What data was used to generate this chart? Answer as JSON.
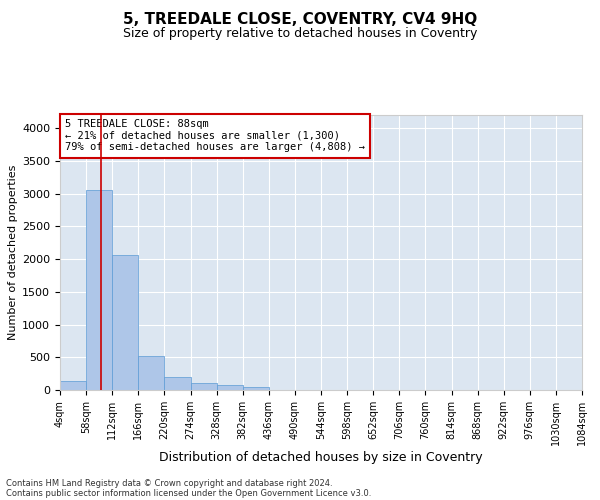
{
  "title": "5, TREEDALE CLOSE, COVENTRY, CV4 9HQ",
  "subtitle": "Size of property relative to detached houses in Coventry",
  "xlabel": "Distribution of detached houses by size in Coventry",
  "ylabel": "Number of detached properties",
  "footer_line1": "Contains HM Land Registry data © Crown copyright and database right 2024.",
  "footer_line2": "Contains public sector information licensed under the Open Government Licence v3.0.",
  "bin_edges": [
    4,
    58,
    112,
    166,
    220,
    274,
    328,
    382,
    436,
    490,
    544,
    598,
    652,
    706,
    760,
    814,
    868,
    922,
    976,
    1030,
    1084
  ],
  "bar_heights": [
    130,
    3050,
    2060,
    520,
    205,
    100,
    75,
    50,
    5,
    0,
    0,
    0,
    0,
    0,
    0,
    0,
    0,
    0,
    0,
    0
  ],
  "bar_color": "#aec6e8",
  "bar_edge_color": "#5b9bd5",
  "property_size": 88,
  "annotation_line1": "5 TREEDALE CLOSE: 88sqm",
  "annotation_line2": "← 21% of detached houses are smaller (1,300)",
  "annotation_line3": "79% of semi-detached houses are larger (4,808) →",
  "vline_color": "#cc0000",
  "annotation_box_edge_color": "#cc0000",
  "ylim_max": 4200,
  "yticks": [
    0,
    500,
    1000,
    1500,
    2000,
    2500,
    3000,
    3500,
    4000
  ],
  "plot_bg_color": "#dce6f1",
  "fig_bg_color": "#ffffff",
  "grid_color": "#ffffff",
  "title_fontsize": 11,
  "subtitle_fontsize": 9,
  "ylabel_fontsize": 8,
  "xlabel_fontsize": 9,
  "annotation_fontsize": 7.5,
  "footer_fontsize": 6,
  "ytick_fontsize": 8,
  "xtick_fontsize": 7
}
